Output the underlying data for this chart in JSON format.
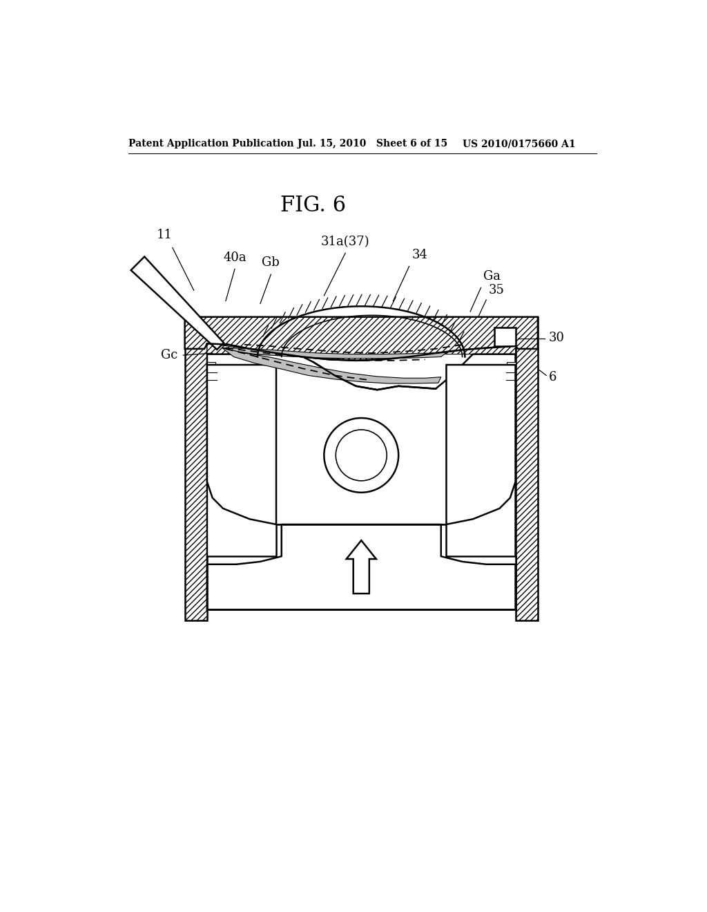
{
  "title": "FIG. 6",
  "header_left": "Patent Application Publication",
  "header_mid": "Jul. 15, 2010   Sheet 6 of 15",
  "header_right": "US 2010/0175660 A1",
  "bg_color": "#ffffff",
  "line_color": "#000000",
  "label_11": "11",
  "label_40a": "40a",
  "label_Gb": "Gb",
  "label_31a37": "31a(37)",
  "label_34": "34",
  "label_Ga": "Ga",
  "label_35": "35",
  "label_30": "30",
  "label_Gc": "Gc",
  "label_6": "6"
}
